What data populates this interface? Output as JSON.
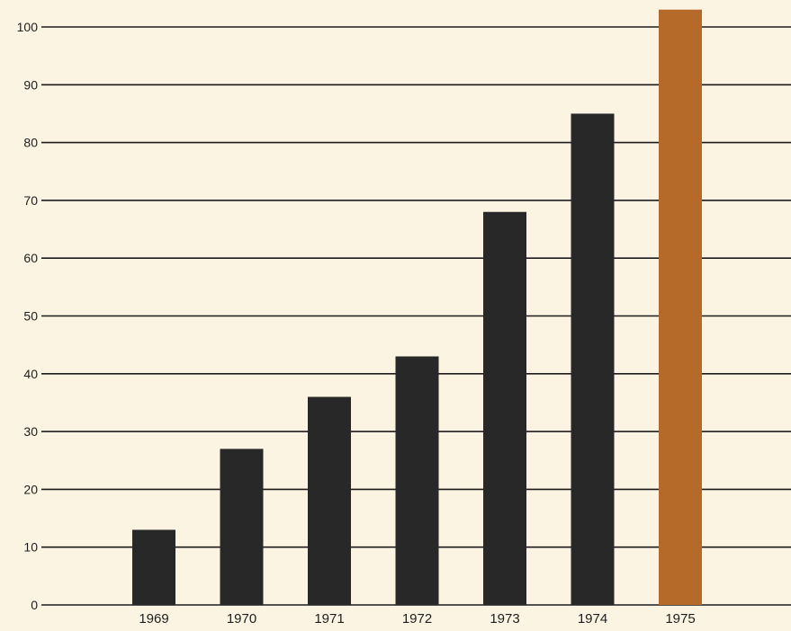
{
  "chart_data": {
    "type": "bar",
    "categories": [
      "1969",
      "1970",
      "1971",
      "1972",
      "1973",
      "1974",
      "1975"
    ],
    "values": [
      13,
      27,
      36,
      43,
      68,
      85,
      103
    ],
    "highlight_index": 6,
    "colors": {
      "bar": "#282828",
      "highlight": "#b66a2a",
      "grid": "#1c1c1c",
      "text": "#1e1e1e",
      "background": "#fbf4e2"
    },
    "yticks": [
      0,
      10,
      20,
      30,
      40,
      50,
      60,
      70,
      80,
      90,
      100
    ],
    "ylim": [
      0,
      104
    ],
    "grid": true,
    "title": "",
    "xlabel": "",
    "ylabel": ""
  }
}
